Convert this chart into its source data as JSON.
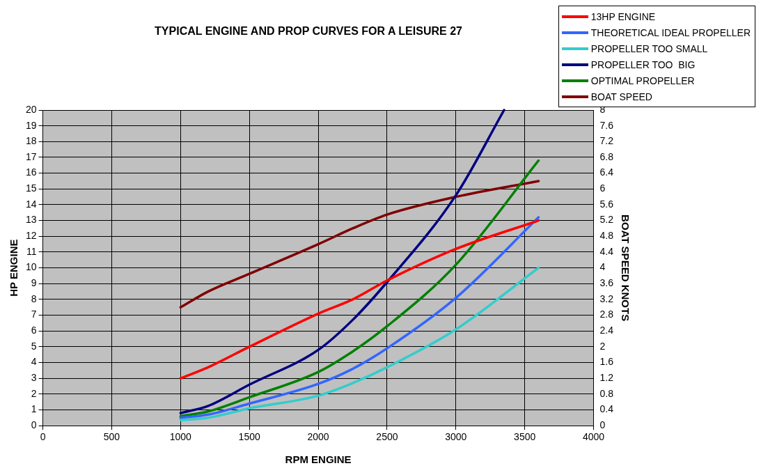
{
  "chart_data": {
    "type": "line",
    "title": "TYPICAL ENGINE AND PROP CURVES FOR A LEISURE 27",
    "xlabel": "RPM ENGINE",
    "ylabel": "HP ENGINE",
    "y2label": "BOAT SPEED KNOTS",
    "xlim": [
      0,
      4000
    ],
    "xticks": [
      0,
      500,
      1000,
      1500,
      2000,
      2500,
      3000,
      3500,
      4000
    ],
    "ylim": [
      0,
      20
    ],
    "yticks": [
      0,
      1,
      2,
      3,
      4,
      5,
      6,
      7,
      8,
      9,
      10,
      11,
      12,
      13,
      14,
      15,
      16,
      17,
      18,
      19,
      20
    ],
    "y2lim": [
      0,
      8
    ],
    "y2ticks": [
      0,
      0.4,
      0.8,
      1.2,
      1.6,
      2,
      2.4,
      2.8,
      3.2,
      3.6,
      4,
      4.4,
      4.8,
      5.2,
      5.6,
      6,
      6.4,
      6.8,
      7.2,
      7.6,
      8
    ],
    "grid": true,
    "legend": "top right",
    "marker": "none",
    "line_style": "solid",
    "series": [
      {
        "name": "13HP ENGINE",
        "color": "#ff0000",
        "x": [
          1000,
          1200,
          1500,
          2000,
          2250,
          2500,
          3000,
          3600
        ],
        "values": [
          3,
          3.7,
          5,
          7.1,
          8,
          9.2,
          11.2,
          13
        ]
      },
      {
        "name": "THEORETICAL IDEAL PROPELLER",
        "color": "#3366ff",
        "x": [
          1000,
          1200,
          1500,
          2000,
          2250,
          2500,
          3000,
          3600
        ],
        "values": [
          0.5,
          0.7,
          1.4,
          2.65,
          3.6,
          4.9,
          8.1,
          13.2
        ]
      },
      {
        "name": "PROPELLER TOO SMALL",
        "color": "#33cccc",
        "x": [
          1000,
          1200,
          1500,
          2000,
          2250,
          2500,
          3000,
          3600
        ],
        "values": [
          0.35,
          0.5,
          1.1,
          1.9,
          2.7,
          3.7,
          6.1,
          10
        ]
      },
      {
        "name": "PROPELLER TOO  BIG",
        "color": "#000080",
        "x": [
          1000,
          1200,
          1500,
          2000,
          2250,
          2500,
          3000,
          3350
        ],
        "values": [
          0.8,
          1.25,
          2.6,
          4.8,
          6.7,
          9.1,
          14.6,
          20
        ]
      },
      {
        "name": "OPTIMAL PROPELLER",
        "color": "#008000",
        "x": [
          1000,
          1200,
          1500,
          2000,
          2250,
          2500,
          3000,
          3600
        ],
        "values": [
          0.6,
          0.9,
          1.8,
          3.4,
          4.7,
          6.3,
          10.2,
          16.8
        ]
      },
      {
        "name": "BOAT SPEED",
        "color": "#800000",
        "axis": "y2",
        "x": [
          1000,
          1200,
          1500,
          2000,
          2250,
          2500,
          3000,
          3600
        ],
        "values": [
          3,
          3.4,
          3.85,
          4.6,
          5,
          5.35,
          5.8,
          6.2
        ]
      }
    ]
  }
}
